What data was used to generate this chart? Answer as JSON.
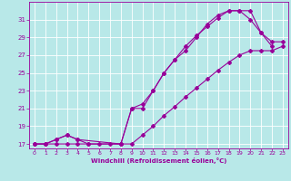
{
  "line1_x": [
    0,
    1,
    2,
    3,
    4,
    5,
    6,
    7,
    8,
    9,
    10,
    11,
    12,
    13,
    14,
    15,
    16,
    17,
    18,
    19,
    20,
    21,
    22,
    23
  ],
  "line1_y": [
    17,
    17,
    17,
    17,
    17,
    17,
    17,
    17,
    17,
    17,
    18.0,
    19.0,
    20.2,
    21.2,
    22.3,
    23.3,
    24.3,
    25.3,
    26.2,
    27.0,
    27.5,
    27.5,
    27.5,
    28.0
  ],
  "line2_x": [
    0,
    1,
    2,
    3,
    4,
    5,
    8,
    9,
    10,
    11,
    12,
    13,
    14,
    15,
    16,
    17,
    18,
    19,
    20,
    21,
    22
  ],
  "line2_y": [
    17,
    17,
    17.5,
    18,
    17.5,
    17,
    17,
    21,
    21.5,
    23.0,
    25.0,
    26.5,
    28.0,
    29.2,
    30.2,
    31.2,
    32.0,
    32.0,
    32.0,
    29.5,
    28.0
  ],
  "line3_x": [
    0,
    1,
    2,
    3,
    4,
    8,
    9,
    10,
    11,
    12,
    13,
    14,
    15,
    16,
    17,
    18,
    19,
    20,
    21,
    22,
    23
  ],
  "line3_y": [
    17,
    17,
    17.5,
    18,
    17.5,
    17,
    21,
    21.0,
    23.0,
    25.0,
    26.5,
    27.5,
    29.0,
    30.5,
    31.5,
    32.0,
    32.0,
    31.0,
    29.5,
    28.5,
    28.5
  ],
  "bg_color": "#b8e8e8",
  "line_color": "#990099",
  "grid_color": "#ffffff",
  "xlabel": "Windchill (Refroidissement éolien,°C)",
  "xlim": [
    -0.5,
    23.5
  ],
  "ylim": [
    16.5,
    33
  ],
  "yticks": [
    17,
    19,
    21,
    23,
    25,
    27,
    29,
    31
  ],
  "xticks": [
    0,
    1,
    2,
    3,
    4,
    5,
    6,
    7,
    8,
    9,
    10,
    11,
    12,
    13,
    14,
    15,
    16,
    17,
    18,
    19,
    20,
    21,
    22,
    23
  ]
}
